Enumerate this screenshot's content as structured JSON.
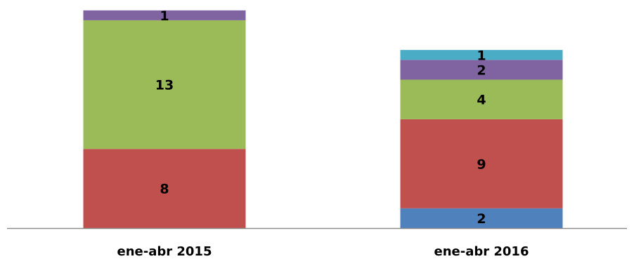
{
  "chart_data": {
    "type": "bar",
    "stacked": true,
    "categories": [
      "ene-abr 2015",
      "ene-abr 2016"
    ],
    "series": [
      {
        "values": [
          0,
          2
        ],
        "color": "#4F81BD"
      },
      {
        "values": [
          8,
          9
        ],
        "color": "#C0504D"
      },
      {
        "values": [
          13,
          4
        ],
        "color": "#9BBB59"
      },
      {
        "values": [
          1,
          2
        ],
        "color": "#8064A2"
      },
      {
        "values": [
          0,
          1
        ],
        "color": "#4BACC6"
      }
    ],
    "data_labels": true,
    "legend": "none",
    "grid": false,
    "ylim": [
      0,
      22
    ]
  }
}
